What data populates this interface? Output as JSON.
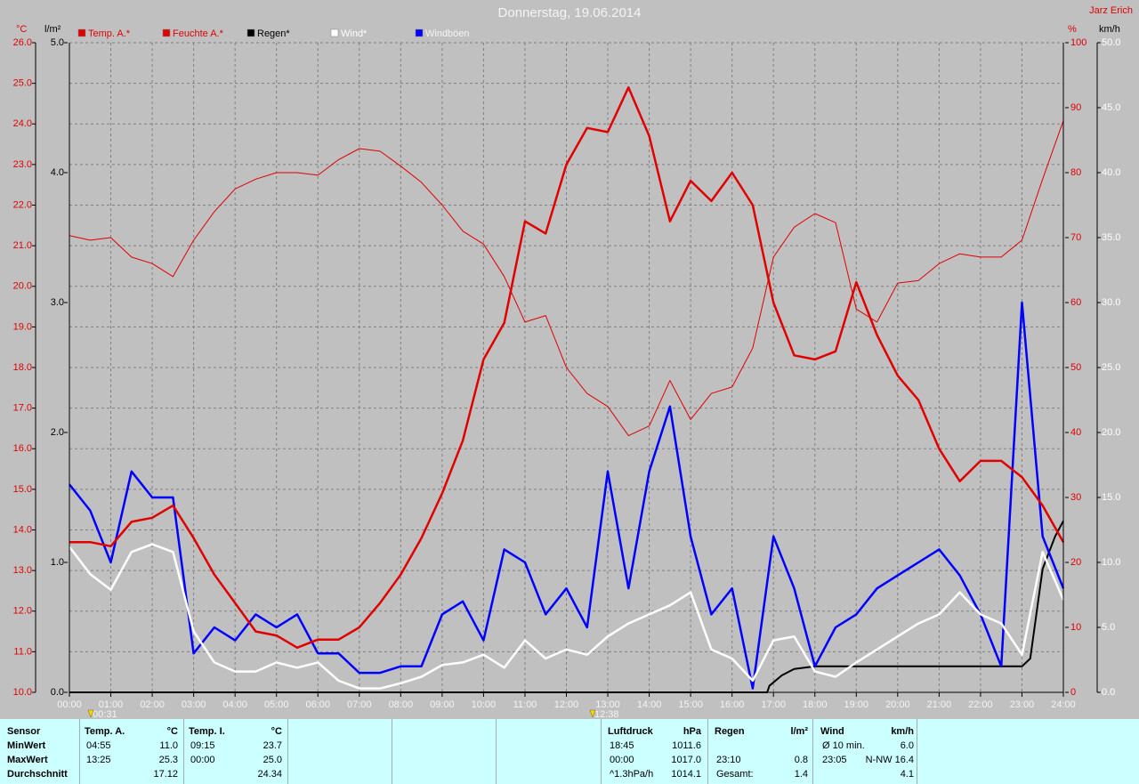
{
  "chart_data": {
    "type": "line",
    "title": "Donnerstag, 19.06.2014",
    "author": "Jarz Erich",
    "grid": true,
    "xlim": [
      0,
      24
    ],
    "xticks": [
      {
        "value": 0,
        "label": "00:00"
      },
      {
        "value": 1,
        "label": "01:00"
      },
      {
        "value": 2,
        "label": "02:00"
      },
      {
        "value": 3,
        "label": "03:00"
      },
      {
        "value": 4,
        "label": "04:00"
      },
      {
        "value": 5,
        "label": "05:00"
      },
      {
        "value": 6,
        "label": "06:00"
      },
      {
        "value": 7,
        "label": "07:00"
      },
      {
        "value": 8,
        "label": "08:00"
      },
      {
        "value": 9,
        "label": "09:00"
      },
      {
        "value": 10,
        "label": "10:00"
      },
      {
        "value": 11,
        "label": "11:00"
      },
      {
        "value": 12,
        "label": "12:00"
      },
      {
        "value": 13,
        "label": "13:00"
      },
      {
        "value": 14,
        "label": "14:00"
      },
      {
        "value": 15,
        "label": "15:00"
      },
      {
        "value": 16,
        "label": "16:00"
      },
      {
        "value": 17,
        "label": "17:00"
      },
      {
        "value": 18,
        "label": "18:00"
      },
      {
        "value": 19,
        "label": "19:00"
      },
      {
        "value": 20,
        "label": "20:00"
      },
      {
        "value": 21,
        "label": "21:00"
      },
      {
        "value": 22,
        "label": "22:00"
      },
      {
        "value": 23,
        "label": "23:00"
      },
      {
        "value": 24,
        "label": "24:00"
      }
    ],
    "axes": [
      {
        "unit": "°C",
        "color": "#e00000",
        "lim": [
          10,
          26
        ],
        "ticks": [
          {
            "value": 10,
            "label": "10.0"
          },
          {
            "value": 11,
            "label": "11.0"
          },
          {
            "value": 12,
            "label": "12.0"
          },
          {
            "value": 13,
            "label": "13.0"
          },
          {
            "value": 14,
            "label": "14.0"
          },
          {
            "value": 15,
            "label": "15.0"
          },
          {
            "value": 16,
            "label": "16.0"
          },
          {
            "value": 17,
            "label": "17.0"
          },
          {
            "value": 18,
            "label": "18.0"
          },
          {
            "value": 19,
            "label": "19.0"
          },
          {
            "value": 20,
            "label": "20.0"
          },
          {
            "value": 21,
            "label": "21.0"
          },
          {
            "value": 22,
            "label": "22.0"
          },
          {
            "value": 23,
            "label": "23.0"
          },
          {
            "value": 24,
            "label": "24.0"
          },
          {
            "value": 25,
            "label": "25.0"
          },
          {
            "value": 26,
            "label": "26.0"
          }
        ]
      },
      {
        "unit": "l/m²",
        "color": "#000000",
        "lim": [
          0,
          5
        ],
        "ticks": [
          {
            "value": 0,
            "label": "0.0"
          },
          {
            "value": 1,
            "label": "1.0"
          },
          {
            "value": 2,
            "label": "2.0"
          },
          {
            "value": 3,
            "label": "3.0"
          },
          {
            "value": 4,
            "label": "4.0"
          },
          {
            "value": 5,
            "label": "5.0"
          }
        ]
      },
      {
        "unit": "%",
        "color": "#e00000",
        "lim": [
          0,
          100
        ],
        "ticks": [
          0,
          10,
          20,
          30,
          40,
          50,
          60,
          70,
          80,
          90,
          100
        ]
      },
      {
        "unit": "km/h",
        "color": "#ffffff",
        "lim": [
          0,
          50
        ],
        "ticks": [
          {
            "value": 0,
            "label": "0.0"
          },
          {
            "value": 5,
            "label": "5.0"
          },
          {
            "value": 10,
            "label": "10.0"
          },
          {
            "value": 15,
            "label": "15.0"
          },
          {
            "value": 20,
            "label": "20.0"
          },
          {
            "value": 25,
            "label": "25.0"
          },
          {
            "value": 30,
            "label": "30.0"
          },
          {
            "value": 35,
            "label": "35.0"
          },
          {
            "value": 40,
            "label": "40.0"
          },
          {
            "value": 45,
            "label": "45.0"
          },
          {
            "value": 50,
            "label": "50.0"
          }
        ]
      }
    ],
    "x": [
      0,
      0.5,
      1,
      1.5,
      2,
      2.5,
      3,
      3.5,
      4,
      4.5,
      5,
      5.5,
      6,
      6.5,
      7,
      7.5,
      8,
      8.5,
      9,
      9.5,
      10,
      10.5,
      11,
      11.5,
      12,
      12.5,
      13,
      13.5,
      14,
      14.5,
      15,
      15.5,
      16,
      16.5,
      17,
      17.5,
      18,
      18.5,
      19,
      19.5,
      20,
      20.5,
      21,
      21.5,
      22,
      22.5,
      23,
      23.5,
      24
    ],
    "series": [
      {
        "name": "Temp. A.*",
        "color": "#e00000",
        "axis": 0,
        "values": [
          13.7,
          13.7,
          13.6,
          14.2,
          14.3,
          14.6,
          13.8,
          12.9,
          12.2,
          11.5,
          11.4,
          11.1,
          11.3,
          11.3,
          11.6,
          12.2,
          12.9,
          13.8,
          14.9,
          16.2,
          18.2,
          19.1,
          21.6,
          21.3,
          23.0,
          23.9,
          23.8,
          24.9,
          23.7,
          21.6,
          22.6,
          22.1,
          22.8,
          22.0,
          19.6,
          18.3,
          18.2,
          18.4,
          20.1,
          18.8,
          17.8,
          17.2,
          16.0,
          15.2,
          15.7,
          15.7,
          15.3,
          14.6,
          13.7
        ]
      },
      {
        "name": "Feuchte A.*",
        "color": "#e00000",
        "axis": 2,
        "values": [
          70.3,
          69.6,
          70,
          67,
          66,
          64,
          69.6,
          74,
          77.5,
          79,
          80,
          80,
          79.6,
          82,
          83.7,
          83.3,
          81,
          78.5,
          75,
          71,
          69,
          64,
          57,
          58,
          50,
          46,
          44,
          39.5,
          41,
          48,
          42,
          46,
          47,
          53,
          67,
          71.6,
          73.7,
          72.3,
          59,
          57,
          63,
          63.4,
          66,
          67.5,
          67,
          67,
          69.6,
          79,
          88
        ]
      },
      {
        "name": "Regen*",
        "color": "#000000",
        "axis": 1,
        "x": [
          0,
          16.85,
          16.9,
          17.2,
          17.5,
          18.0,
          23.0,
          23.2,
          23.5,
          23.8,
          24.0
        ],
        "values": [
          0,
          0,
          0.05,
          0.13,
          0.18,
          0.2,
          0.2,
          0.26,
          0.95,
          1.2,
          1.32
        ]
      },
      {
        "name": "Wind*",
        "color": "#ffffff",
        "axis": 3,
        "values": [
          11.2,
          9.1,
          7.9,
          10.8,
          11.4,
          10.8,
          4.7,
          2.3,
          1.6,
          1.6,
          2.3,
          1.9,
          2.3,
          0.9,
          0.3,
          0.3,
          0.7,
          1.2,
          2.1,
          2.3,
          2.9,
          1.9,
          4.0,
          2.6,
          3.3,
          2.9,
          4.3,
          5.3,
          6.0,
          6.7,
          7.7,
          3.3,
          2.6,
          0.9,
          4.0,
          4.3,
          1.6,
          1.2,
          2.3,
          3.3,
          4.3,
          5.3,
          6.0,
          7.7,
          6.0,
          5.3,
          2.9,
          10.8,
          7.1
        ]
      },
      {
        "name": "Windböen",
        "color": "#0000ff",
        "axis": 3,
        "values": [
          16,
          14,
          10,
          17,
          15,
          15,
          3,
          5,
          4,
          6,
          5,
          6,
          3,
          3,
          1.5,
          1.5,
          2,
          2,
          6,
          7,
          4,
          11,
          10,
          6,
          8,
          5,
          17,
          8,
          17,
          22,
          12,
          6,
          8,
          0.3,
          12,
          8,
          2,
          5,
          6,
          8,
          9,
          10,
          11,
          9,
          6,
          2,
          30,
          12,
          8
        ]
      }
    ],
    "annotations": [
      {
        "text": "00:31",
        "x": 0.5167
      },
      {
        "text": "12:38",
        "x": 12.6333
      }
    ]
  },
  "stats": {
    "row_header": "Sensor",
    "row_labels": [
      "MinWert",
      "MaxWert",
      "Durchschnitt"
    ],
    "blocks": [
      {
        "title": "Temp. A.",
        "unit": "°C",
        "rows": [
          {
            "time": "04:55",
            "value": "11.0"
          },
          {
            "time": "13:25",
            "value": "25.3"
          },
          {
            "value": "17.12"
          }
        ]
      },
      {
        "title": "Temp. I.",
        "unit": "°C",
        "rows": [
          {
            "time": "09:15",
            "value": "23.7"
          },
          {
            "time": "00:00",
            "value": "25.0"
          },
          {
            "value": "24.34"
          }
        ]
      },
      {
        "title": "Luftdruck",
        "unit": "hPa",
        "rows": [
          {
            "time": "18:45",
            "value": "1011.6"
          },
          {
            "time": "00:00",
            "value": "1017.0"
          },
          {
            "time": "^1.3hPa/h",
            "value": "1014.1"
          }
        ]
      },
      {
        "title": "Regen",
        "unit": "l/m²",
        "rows": [
          null,
          {
            "time": "23:10",
            "value": "0.8"
          },
          {
            "time": "Gesamt:",
            "value": "1.4"
          }
        ]
      },
      {
        "title": "Wind",
        "unit": "km/h",
        "rows": [
          {
            "time": "Ø 10 min.",
            "value": "6.0"
          },
          {
            "time": "23:05",
            "value": "N-NW 16.4"
          },
          {
            "value": "4.1"
          }
        ]
      }
    ]
  }
}
